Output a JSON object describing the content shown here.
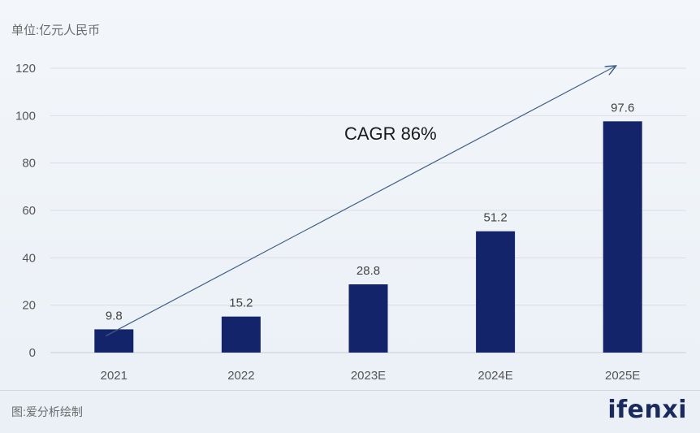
{
  "unit_label": "单位:亿元人民币",
  "source_label": "图:爱分析绘制",
  "logo_text": "ifenxi",
  "colors": {
    "bar": "#13246b",
    "arrow": "#3f5f86",
    "grid": "#d9dee4"
  },
  "chart_data": {
    "type": "bar",
    "categories": [
      "2021",
      "2022",
      "2023E",
      "2024E",
      "2025E"
    ],
    "values": [
      9.8,
      15.2,
      28.8,
      51.2,
      97.6
    ],
    "data_labels": [
      "9.8",
      "15.2",
      "28.8",
      "51.2",
      "97.6"
    ],
    "ylim": [
      0,
      120
    ],
    "yticks": [
      0,
      20,
      40,
      60,
      80,
      100,
      120
    ],
    "grid": true,
    "annotation": "CAGR 86%",
    "trend_arrow": {
      "from": [
        2021,
        7
      ],
      "to": [
        2025,
        120
      ]
    },
    "title": "",
    "xlabel": "",
    "ylabel": ""
  }
}
